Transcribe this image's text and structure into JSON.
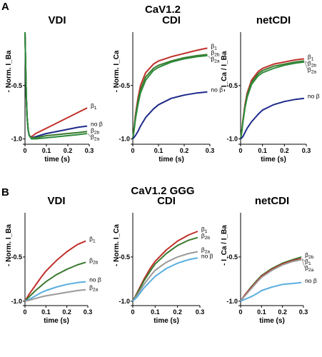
{
  "panel_letters": [
    "A",
    "B"
  ],
  "row_titles": [
    "CaV1.2",
    "CaV1.2 GGG"
  ],
  "colors": {
    "beta1": "#c0302b",
    "beta2b": "#3a7a2e",
    "beta2a": "#2e8b3c",
    "no_beta": "#1e2a8a",
    "no_beta_B": "#5aaee0",
    "beta2a_B": "#9a9a9a"
  },
  "chart_data": [
    {
      "type": "line",
      "row": "A",
      "title": "VDI",
      "xlabel": "time (s)",
      "ylabel": "- Norm. I_Ba",
      "xlim": [
        0,
        0.3
      ],
      "ylim": [
        -1.05,
        0
      ],
      "xticks": [
        "0",
        "0.1",
        "0.2",
        "0.3"
      ],
      "yticks": [
        "-1.0",
        "-0.5"
      ],
      "series": [
        {
          "name": "β1",
          "color": "#c0302b",
          "x": [
            0,
            0.003,
            0.006,
            0.01,
            0.015,
            0.02,
            0.03,
            0.05,
            0.1,
            0.15,
            0.2,
            0.25,
            0.29
          ],
          "y": [
            0,
            -0.3,
            -0.6,
            -0.8,
            -0.92,
            -0.97,
            -0.98,
            -0.95,
            -0.9,
            -0.85,
            -0.8,
            -0.75,
            -0.71
          ]
        },
        {
          "name": "no β",
          "color": "#1e2a8a",
          "x": [
            0,
            0.003,
            0.006,
            0.01,
            0.015,
            0.02,
            0.03,
            0.05,
            0.1,
            0.15,
            0.2,
            0.25,
            0.29
          ],
          "y": [
            0,
            -0.3,
            -0.6,
            -0.8,
            -0.92,
            -0.97,
            -0.99,
            -0.98,
            -0.95,
            -0.93,
            -0.91,
            -0.89,
            -0.88
          ]
        },
        {
          "name": "β2b",
          "color": "#3a7a2e",
          "x": [
            0,
            0.003,
            0.006,
            0.01,
            0.015,
            0.02,
            0.03,
            0.05,
            0.1,
            0.15,
            0.2,
            0.25,
            0.29
          ],
          "y": [
            0,
            -0.3,
            -0.6,
            -0.8,
            -0.92,
            -0.97,
            -0.99,
            -0.99,
            -0.97,
            -0.96,
            -0.95,
            -0.94,
            -0.93
          ]
        },
        {
          "name": "β2a",
          "color": "#2e8b3c",
          "x": [
            0,
            0.003,
            0.006,
            0.01,
            0.015,
            0.02,
            0.03,
            0.05,
            0.1,
            0.15,
            0.2,
            0.25,
            0.29
          ],
          "y": [
            0,
            -0.3,
            -0.6,
            -0.8,
            -0.92,
            -0.97,
            -1.0,
            -1.0,
            -0.99,
            -0.98,
            -0.97,
            -0.96,
            -0.95
          ]
        }
      ]
    },
    {
      "type": "line",
      "row": "A",
      "title": "CDI",
      "xlabel": "time (s)",
      "ylabel": "- Norm. I_Ca",
      "xlim": [
        0,
        0.3
      ],
      "ylim": [
        -1.05,
        0
      ],
      "xticks": [
        "0",
        "0.1",
        "0.2",
        "0.3"
      ],
      "yticks": [
        "-1.0",
        "-0.5"
      ],
      "series": [
        {
          "name": "β1",
          "color": "#c0302b",
          "x": [
            0,
            0.005,
            0.01,
            0.02,
            0.03,
            0.05,
            0.08,
            0.1,
            0.15,
            0.2,
            0.25,
            0.29
          ],
          "y": [
            -1.0,
            -0.9,
            -0.78,
            -0.62,
            -0.5,
            -0.38,
            -0.3,
            -0.27,
            -0.23,
            -0.2,
            -0.17,
            -0.15
          ]
        },
        {
          "name": "β2b",
          "color": "#3a7a2e",
          "x": [
            0,
            0.005,
            0.01,
            0.02,
            0.03,
            0.05,
            0.08,
            0.1,
            0.15,
            0.2,
            0.25,
            0.29
          ],
          "y": [
            -1.0,
            -0.9,
            -0.8,
            -0.65,
            -0.54,
            -0.42,
            -0.34,
            -0.31,
            -0.27,
            -0.24,
            -0.22,
            -0.21
          ]
        },
        {
          "name": "β2a",
          "color": "#2e8b3c",
          "x": [
            0,
            0.005,
            0.01,
            0.02,
            0.03,
            0.05,
            0.08,
            0.1,
            0.15,
            0.2,
            0.25,
            0.29
          ],
          "y": [
            -1.0,
            -0.92,
            -0.82,
            -0.68,
            -0.57,
            -0.45,
            -0.36,
            -0.33,
            -0.28,
            -0.25,
            -0.23,
            -0.22
          ]
        },
        {
          "name": "no β",
          "color": "#1e2a8a",
          "x": [
            0,
            0.01,
            0.02,
            0.03,
            0.05,
            0.08,
            0.1,
            0.15,
            0.2,
            0.25,
            0.29
          ],
          "y": [
            -1.0,
            -0.97,
            -0.93,
            -0.88,
            -0.8,
            -0.72,
            -0.68,
            -0.62,
            -0.59,
            -0.57,
            -0.56
          ]
        }
      ]
    },
    {
      "type": "line",
      "row": "A",
      "title": "netCDI",
      "xlabel": "time (s)",
      "ylabel": "- I_Ca / I_Ba",
      "xlim": [
        0,
        0.3
      ],
      "ylim": [
        -1.05,
        0
      ],
      "xticks": [
        "0",
        "0.1",
        "0.2",
        "0.3"
      ],
      "yticks": [
        "-1.0",
        "-0.5"
      ],
      "series": [
        {
          "name": "β1",
          "color": "#c0302b",
          "x": [
            0,
            0.005,
            0.01,
            0.02,
            0.03,
            0.05,
            0.08,
            0.1,
            0.15,
            0.2,
            0.25,
            0.29
          ],
          "y": [
            -1.0,
            -0.93,
            -0.83,
            -0.68,
            -0.57,
            -0.45,
            -0.37,
            -0.34,
            -0.3,
            -0.28,
            -0.26,
            -0.25
          ]
        },
        {
          "name": "β2b",
          "color": "#3a7a2e",
          "x": [
            0,
            0.005,
            0.01,
            0.02,
            0.03,
            0.05,
            0.08,
            0.1,
            0.15,
            0.2,
            0.25,
            0.29
          ],
          "y": [
            -1.0,
            -0.93,
            -0.84,
            -0.7,
            -0.59,
            -0.47,
            -0.39,
            -0.36,
            -0.32,
            -0.3,
            -0.28,
            -0.27
          ]
        },
        {
          "name": "β2a",
          "color": "#2e8b3c",
          "x": [
            0,
            0.005,
            0.01,
            0.02,
            0.03,
            0.05,
            0.08,
            0.1,
            0.15,
            0.2,
            0.25,
            0.29
          ],
          "y": [
            -1.0,
            -0.94,
            -0.85,
            -0.71,
            -0.61,
            -0.49,
            -0.41,
            -0.38,
            -0.34,
            -0.31,
            -0.29,
            -0.28
          ]
        },
        {
          "name": "no β",
          "color": "#1e2a8a",
          "x": [
            0,
            0.01,
            0.02,
            0.03,
            0.05,
            0.08,
            0.1,
            0.15,
            0.2,
            0.25,
            0.29
          ],
          "y": [
            -1.0,
            -0.98,
            -0.94,
            -0.9,
            -0.84,
            -0.77,
            -0.73,
            -0.68,
            -0.65,
            -0.63,
            -0.62
          ]
        }
      ]
    },
    {
      "type": "line",
      "row": "B",
      "title": "VDI",
      "xlabel": "time (s)",
      "ylabel": "- Norm. I_Ba",
      "xlim": [
        0,
        0.3
      ],
      "ylim": [
        -1.05,
        0
      ],
      "xticks": [
        "0",
        "0.1",
        "0.2",
        "0.3"
      ],
      "yticks": [
        "-1.0",
        "-0.5"
      ],
      "series": [
        {
          "name": "β1",
          "color": "#c0302b",
          "x": [
            0,
            0.02,
            0.05,
            0.08,
            0.1,
            0.15,
            0.2,
            0.25,
            0.29
          ],
          "y": [
            -1.0,
            -0.92,
            -0.82,
            -0.72,
            -0.66,
            -0.54,
            -0.44,
            -0.36,
            -0.32
          ]
        },
        {
          "name": "β2b",
          "color": "#3a7a2e",
          "x": [
            0,
            0.02,
            0.05,
            0.08,
            0.1,
            0.15,
            0.2,
            0.25,
            0.29
          ],
          "y": [
            -1.0,
            -0.95,
            -0.88,
            -0.82,
            -0.78,
            -0.7,
            -0.64,
            -0.59,
            -0.56
          ]
        },
        {
          "name": "no β",
          "color": "#5aaee0",
          "x": [
            0,
            0.02,
            0.05,
            0.08,
            0.1,
            0.15,
            0.2,
            0.25,
            0.29
          ],
          "y": [
            -1.0,
            -0.98,
            -0.94,
            -0.9,
            -0.88,
            -0.84,
            -0.81,
            -0.79,
            -0.78
          ]
        },
        {
          "name": "β2a",
          "color": "#9a9a9a",
          "x": [
            0,
            0.02,
            0.05,
            0.08,
            0.1,
            0.15,
            0.2,
            0.25,
            0.29
          ],
          "y": [
            -1.0,
            -0.99,
            -0.97,
            -0.95,
            -0.94,
            -0.92,
            -0.9,
            -0.88,
            -0.87
          ]
        }
      ]
    },
    {
      "type": "line",
      "row": "B",
      "title": "CDI",
      "xlabel": "time (s)",
      "ylabel": "- Norm. I_Ca",
      "xlim": [
        0,
        0.3
      ],
      "ylim": [
        -1.05,
        0
      ],
      "xticks": [
        "0",
        "0.1",
        "0.2",
        "0.3"
      ],
      "yticks": [
        "-1.0",
        "-0.5"
      ],
      "series": [
        {
          "name": "β1",
          "color": "#c0302b",
          "x": [
            0,
            0.02,
            0.05,
            0.08,
            0.1,
            0.15,
            0.2,
            0.25,
            0.29
          ],
          "y": [
            -1.0,
            -0.9,
            -0.75,
            -0.62,
            -0.55,
            -0.42,
            -0.32,
            -0.25,
            -0.21
          ]
        },
        {
          "name": "β2b",
          "color": "#3a7a2e",
          "x": [
            0,
            0.02,
            0.05,
            0.08,
            0.1,
            0.15,
            0.2,
            0.25,
            0.29
          ],
          "y": [
            -1.0,
            -0.91,
            -0.77,
            -0.65,
            -0.58,
            -0.46,
            -0.37,
            -0.31,
            -0.28
          ]
        },
        {
          "name": "β2a",
          "color": "#9a9a9a",
          "x": [
            0,
            0.02,
            0.05,
            0.08,
            0.1,
            0.15,
            0.2,
            0.25,
            0.29
          ],
          "y": [
            -1.0,
            -0.93,
            -0.81,
            -0.71,
            -0.65,
            -0.56,
            -0.5,
            -0.46,
            -0.44
          ]
        },
        {
          "name": "no β",
          "color": "#5aaee0",
          "x": [
            0,
            0.02,
            0.05,
            0.08,
            0.1,
            0.15,
            0.2,
            0.25,
            0.29
          ],
          "y": [
            -1.0,
            -0.95,
            -0.85,
            -0.77,
            -0.72,
            -0.63,
            -0.57,
            -0.53,
            -0.51
          ]
        }
      ]
    },
    {
      "type": "line",
      "row": "B",
      "title": "netCDI",
      "xlabel": "time (s)",
      "ylabel": "- I_Ca / I_Ba",
      "xlim": [
        0,
        0.3
      ],
      "ylim": [
        -1.05,
        0
      ],
      "xticks": [
        "0",
        "0.1",
        "0.2",
        "0.3"
      ],
      "yticks": [
        "-1.0",
        "-0.5"
      ],
      "series": [
        {
          "name": "β2b",
          "color": "#3a7a2e",
          "x": [
            0,
            0.02,
            0.05,
            0.08,
            0.1,
            0.15,
            0.2,
            0.25,
            0.29
          ],
          "y": [
            -1.0,
            -0.93,
            -0.84,
            -0.76,
            -0.71,
            -0.63,
            -0.57,
            -0.53,
            -0.5
          ]
        },
        {
          "name": "β1",
          "color": "#c0302b",
          "x": [
            0,
            0.02,
            0.05,
            0.08,
            0.1,
            0.15,
            0.2,
            0.25,
            0.29
          ],
          "y": [
            -1.0,
            -0.93,
            -0.85,
            -0.77,
            -0.72,
            -0.64,
            -0.58,
            -0.54,
            -0.52
          ]
        },
        {
          "name": "β2a",
          "color": "#9a9a9a",
          "x": [
            0,
            0.02,
            0.05,
            0.08,
            0.1,
            0.15,
            0.2,
            0.25,
            0.29
          ],
          "y": [
            -1.0,
            -0.94,
            -0.86,
            -0.78,
            -0.73,
            -0.65,
            -0.59,
            -0.55,
            -0.53
          ]
        },
        {
          "name": "no β",
          "color": "#5aaee0",
          "x": [
            0,
            0.02,
            0.05,
            0.08,
            0.1,
            0.15,
            0.2,
            0.25,
            0.29
          ],
          "y": [
            -1.0,
            -0.98,
            -0.95,
            -0.91,
            -0.88,
            -0.84,
            -0.81,
            -0.8,
            -0.79
          ]
        }
      ]
    }
  ]
}
